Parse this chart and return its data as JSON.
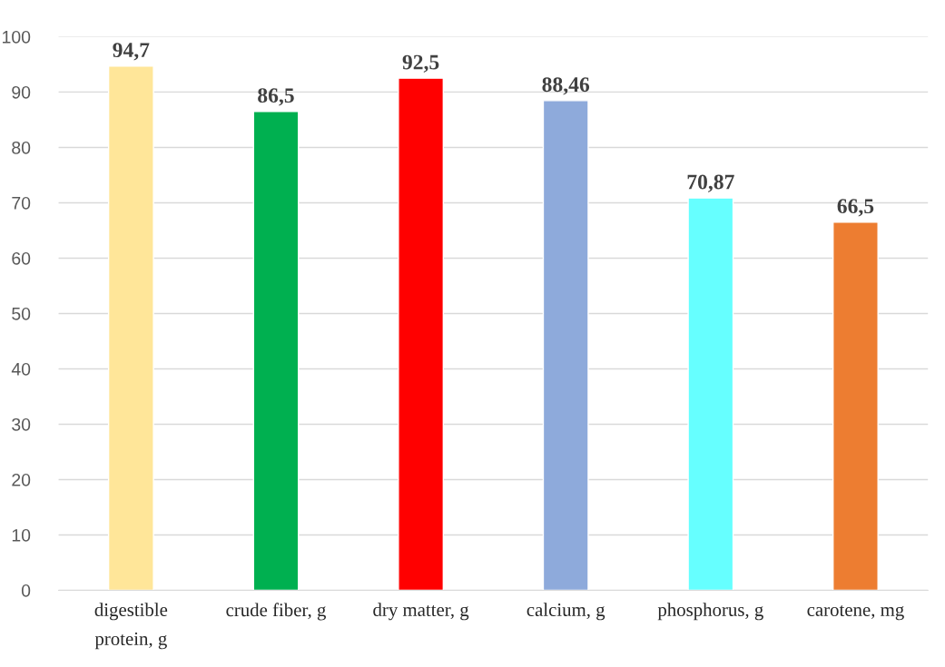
{
  "chart_data": {
    "type": "bar",
    "categories": [
      "digestible\nprotein, g",
      "crude fiber, g",
      "dry matter, g",
      "calcium, g",
      "phosphorus, g",
      "carotene, mg"
    ],
    "values": [
      94.7,
      86.5,
      92.5,
      88.46,
      70.87,
      66.5
    ],
    "colors": [
      "#ffe699",
      "#00b050",
      "#ff0000",
      "#8eaadb",
      "#66ffff",
      "#ed7d31"
    ],
    "value_labels": [
      "94,7",
      "86,5",
      "92,5",
      "88,46",
      "70,87",
      "66,5"
    ],
    "ylim": [
      0,
      100
    ],
    "yticks": [
      0,
      10,
      20,
      30,
      40,
      50,
      60,
      70,
      80,
      90,
      100
    ],
    "grid": "y",
    "legend": false
  }
}
